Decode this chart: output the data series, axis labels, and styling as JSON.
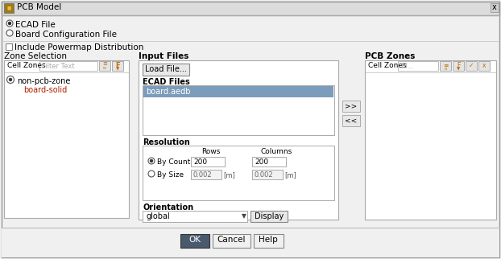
{
  "title": "PCB Model",
  "bg_color": "#f0f0f0",
  "title_bar_color": "#e0e0e0",
  "radio1": "ECAD File",
  "radio2": "Board Configuration File",
  "checkbox": "Include Powermap Distribution",
  "zone_selection_label": "Zone Selection",
  "cell_zones_label": "Cell Zones",
  "filter_placeholder": "Filter Text",
  "tree_item1": "non-pcb-zone",
  "tree_item2": "board-solid",
  "input_files_label": "Input Files",
  "load_file_btn": "Load File...",
  "ecad_files_label": "ECAD Files",
  "ecad_file_item": "board.aedb",
  "resolution_label": "Resolution",
  "rows_label": "Rows",
  "columns_label": "Columns",
  "by_count_label": "By Count",
  "by_size_label": "By Size",
  "row_count": "200",
  "col_count": "200",
  "row_size": "0.002",
  "col_size": "0.002",
  "unit": "[m]",
  "orientation_label": "Orientation",
  "orientation_value": "global",
  "display_btn": "Display",
  "btn_ok": "OK",
  "btn_cancel": "Cancel",
  "btn_help": "Help",
  "pcb_zones_label": "PCB Zones",
  "cell_zones_label2": "Cell Zones",
  "fil_placeholder": "Fil...",
  "highlight_color": "#7b9cba",
  "arrow_right": ">>",
  "arrow_left": "<<"
}
